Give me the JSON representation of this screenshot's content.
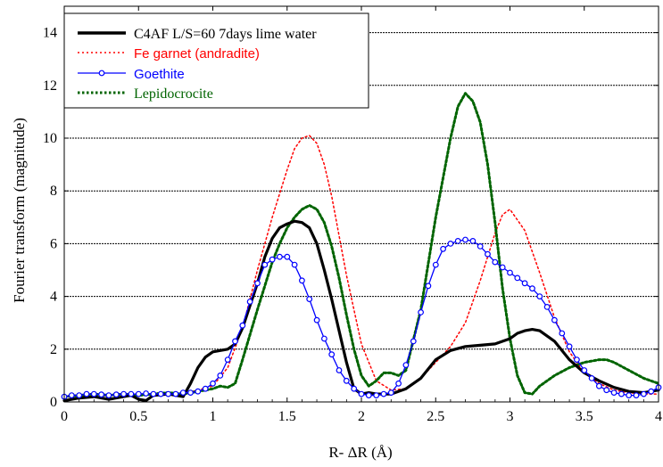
{
  "chart_data": {
    "type": "line",
    "title": "",
    "xlabel": "R- ΔR (Å)",
    "ylabel": "Fourier transform (magnitude)",
    "xlim": [
      0,
      4
    ],
    "ylim": [
      0,
      15
    ],
    "xticks": [
      0,
      0.5,
      1,
      1.5,
      2,
      2.5,
      3,
      3.5,
      4
    ],
    "xtick_labels": [
      "0",
      "0.5",
      "1",
      "1.5",
      "2",
      "2.5",
      "3",
      "3.5",
      "4"
    ],
    "yticks": [
      0,
      2,
      4,
      6,
      8,
      10,
      12,
      14
    ],
    "ytick_labels": [
      "0",
      "2",
      "4",
      "6",
      "8",
      "10",
      "12",
      "14"
    ],
    "grid": "horizontal dashed",
    "legend_position": "top-left",
    "series": [
      {
        "name": "C4AF L/S=60 7days lime water",
        "color": "#000000",
        "style": "solid-thick",
        "x": [
          0,
          0.1,
          0.2,
          0.3,
          0.4,
          0.45,
          0.5,
          0.55,
          0.6,
          0.7,
          0.8,
          0.85,
          0.9,
          0.95,
          1.0,
          1.05,
          1.1,
          1.15,
          1.2,
          1.3,
          1.35,
          1.4,
          1.45,
          1.5,
          1.55,
          1.6,
          1.65,
          1.7,
          1.75,
          1.8,
          1.85,
          1.9,
          1.95,
          2.0,
          2.05,
          2.1,
          2.2,
          2.3,
          2.4,
          2.5,
          2.6,
          2.7,
          2.8,
          2.9,
          3.0,
          3.05,
          3.1,
          3.15,
          3.2,
          3.3,
          3.4,
          3.5,
          3.6,
          3.7,
          3.8,
          3.9,
          4.0
        ],
        "y": [
          0.05,
          0.15,
          0.2,
          0.1,
          0.2,
          0.25,
          0.1,
          0.05,
          0.25,
          0.3,
          0.2,
          0.7,
          1.3,
          1.7,
          1.9,
          1.95,
          2.0,
          2.2,
          2.8,
          4.5,
          5.5,
          6.2,
          6.6,
          6.75,
          6.85,
          6.8,
          6.6,
          6.0,
          5.0,
          3.9,
          2.7,
          1.5,
          0.5,
          0.3,
          0.35,
          0.3,
          0.3,
          0.5,
          0.9,
          1.6,
          1.95,
          2.1,
          2.15,
          2.2,
          2.4,
          2.6,
          2.7,
          2.75,
          2.7,
          2.3,
          1.6,
          1.1,
          0.8,
          0.55,
          0.4,
          0.35,
          0.45
        ]
      },
      {
        "name": "Fe garnet (andradite)",
        "color": "#ff0000",
        "style": "dotted",
        "x": [
          0,
          0.2,
          0.4,
          0.6,
          0.8,
          1.0,
          1.1,
          1.2,
          1.3,
          1.4,
          1.5,
          1.55,
          1.6,
          1.65,
          1.7,
          1.75,
          1.8,
          1.9,
          2.0,
          2.1,
          2.2,
          2.3,
          2.4,
          2.5,
          2.6,
          2.7,
          2.8,
          2.9,
          2.95,
          3.0,
          3.1,
          3.2,
          3.3,
          3.4,
          3.5,
          3.6,
          3.7,
          3.8,
          3.9,
          4.0
        ],
        "y": [
          0.1,
          0.2,
          0.3,
          0.3,
          0.3,
          0.6,
          1.3,
          2.8,
          5.0,
          7.0,
          8.8,
          9.6,
          10.0,
          10.1,
          9.8,
          9.0,
          7.8,
          4.8,
          2.2,
          0.8,
          0.45,
          0.5,
          0.9,
          1.5,
          2.1,
          3.0,
          4.6,
          6.4,
          7.1,
          7.3,
          6.5,
          4.9,
          3.2,
          1.9,
          1.1,
          0.7,
          0.45,
          0.35,
          0.3,
          0.3
        ]
      },
      {
        "name": "Goethite",
        "color": "#0000ff",
        "style": "solid-circles",
        "x": [
          0,
          0.05,
          0.1,
          0.15,
          0.2,
          0.25,
          0.3,
          0.35,
          0.4,
          0.45,
          0.5,
          0.55,
          0.6,
          0.65,
          0.7,
          0.75,
          0.8,
          0.85,
          0.9,
          0.95,
          1.0,
          1.05,
          1.1,
          1.15,
          1.2,
          1.25,
          1.3,
          1.35,
          1.4,
          1.45,
          1.5,
          1.55,
          1.6,
          1.65,
          1.7,
          1.75,
          1.8,
          1.85,
          1.9,
          1.95,
          2.0,
          2.05,
          2.1,
          2.15,
          2.2,
          2.25,
          2.3,
          2.35,
          2.4,
          2.45,
          2.5,
          2.55,
          2.6,
          2.65,
          2.7,
          2.75,
          2.8,
          2.85,
          2.9,
          2.95,
          3.0,
          3.05,
          3.1,
          3.15,
          3.2,
          3.25,
          3.3,
          3.35,
          3.4,
          3.45,
          3.5,
          3.55,
          3.6,
          3.65,
          3.7,
          3.75,
          3.8,
          3.85,
          3.9,
          3.95,
          4.0
        ],
        "y": [
          0.2,
          0.25,
          0.25,
          0.3,
          0.3,
          0.28,
          0.25,
          0.28,
          0.3,
          0.3,
          0.3,
          0.32,
          0.3,
          0.3,
          0.3,
          0.3,
          0.35,
          0.35,
          0.4,
          0.5,
          0.7,
          1.0,
          1.6,
          2.3,
          2.9,
          3.8,
          4.5,
          5.2,
          5.4,
          5.5,
          5.5,
          5.2,
          4.6,
          3.9,
          3.1,
          2.4,
          1.8,
          1.2,
          0.8,
          0.5,
          0.3,
          0.25,
          0.25,
          0.3,
          0.35,
          0.7,
          1.4,
          2.3,
          3.4,
          4.4,
          5.2,
          5.8,
          6.0,
          6.1,
          6.15,
          6.1,
          5.9,
          5.6,
          5.3,
          5.1,
          4.9,
          4.7,
          4.5,
          4.3,
          4.0,
          3.6,
          3.1,
          2.6,
          2.1,
          1.6,
          1.2,
          0.9,
          0.6,
          0.45,
          0.35,
          0.3,
          0.25,
          0.25,
          0.3,
          0.4,
          0.55
        ]
      },
      {
        "name": "Lepidocrocite",
        "color": "#006400",
        "style": "dotted-thick",
        "x": [
          0,
          0.1,
          0.2,
          0.3,
          0.4,
          0.5,
          0.6,
          0.7,
          0.8,
          0.9,
          1.0,
          1.05,
          1.1,
          1.15,
          1.2,
          1.3,
          1.4,
          1.45,
          1.5,
          1.55,
          1.6,
          1.65,
          1.7,
          1.75,
          1.8,
          1.85,
          1.9,
          1.95,
          2.0,
          2.05,
          2.1,
          2.15,
          2.2,
          2.25,
          2.3,
          2.4,
          2.5,
          2.6,
          2.65,
          2.7,
          2.75,
          2.8,
          2.85,
          2.9,
          2.95,
          3.0,
          3.05,
          3.1,
          3.15,
          3.2,
          3.3,
          3.4,
          3.5,
          3.6,
          3.65,
          3.7,
          3.8,
          3.9,
          4.0
        ],
        "y": [
          0.2,
          0.25,
          0.3,
          0.25,
          0.3,
          0.25,
          0.3,
          0.35,
          0.3,
          0.4,
          0.5,
          0.6,
          0.55,
          0.7,
          1.6,
          3.5,
          5.3,
          6.0,
          6.6,
          7.0,
          7.3,
          7.45,
          7.3,
          6.8,
          5.9,
          4.7,
          3.3,
          2.0,
          1.0,
          0.6,
          0.8,
          1.1,
          1.1,
          1.0,
          1.2,
          3.5,
          7.0,
          10.0,
          11.2,
          11.7,
          11.4,
          10.6,
          9.0,
          6.8,
          4.3,
          2.4,
          1.0,
          0.35,
          0.3,
          0.6,
          1.0,
          1.3,
          1.5,
          1.6,
          1.6,
          1.5,
          1.2,
          0.9,
          0.7
        ]
      }
    ]
  }
}
